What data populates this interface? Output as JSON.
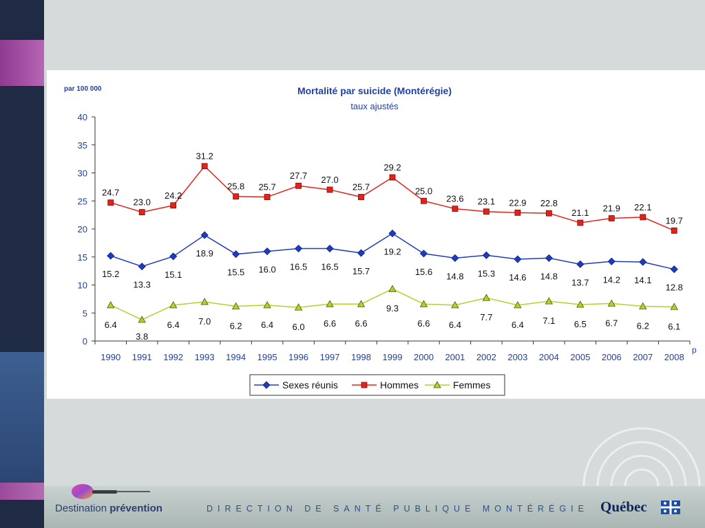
{
  "colors": {
    "accent_blue": "#1f3bbf",
    "accent_red": "#e2231a",
    "accent_green": "#b6cf2b",
    "title_blue": "#1f3fa4"
  },
  "footer": {
    "brand_normal": "Destination ",
    "brand_bold": "prévention",
    "org": "DIRECTION DE SANTÉ PUBLIQUE MONTÉRÉGIE",
    "quebec": "Québec"
  },
  "chart_data": {
    "type": "line",
    "title": "Mortalité par suicide (Montérégie)",
    "subtitle": "taux ajustés",
    "unit_label": "par 100 000",
    "categories": [
      "1990",
      "1991",
      "1992",
      "1993",
      "1994",
      "1995",
      "1996",
      "1997",
      "1998",
      "1999",
      "2000",
      "2001",
      "2002",
      "2003",
      "2004",
      "2005",
      "2006",
      "2007",
      "2008"
    ],
    "last_category_note": "p",
    "ylim": [
      0,
      40
    ],
    "yticks": [
      0,
      5,
      10,
      15,
      20,
      25,
      30,
      35,
      40
    ],
    "legend_position": "bottom",
    "grid": false,
    "series": [
      {
        "name": "Sexes réunis",
        "color": "#1f3bbf",
        "marker": "diamond",
        "values": [
          15.2,
          13.3,
          15.1,
          18.9,
          15.5,
          16.0,
          16.5,
          16.5,
          15.7,
          19.2,
          15.6,
          14.8,
          15.3,
          14.6,
          14.8,
          13.7,
          14.2,
          14.1,
          12.8
        ],
        "labels": [
          "15.2",
          "13.3",
          "15.1",
          "18.9",
          "15.5",
          "16.0",
          "16.5",
          "16.5",
          "15.7",
          "19.2",
          "15.6",
          "14.8",
          "15.3",
          "14.6",
          "14.8",
          "13.7",
          "14.2",
          "14.1",
          "12.8"
        ],
        "label_pos": "below"
      },
      {
        "name": "Hommes",
        "color": "#e2231a",
        "marker": "square",
        "values": [
          24.7,
          23.0,
          24.2,
          31.2,
          25.8,
          25.7,
          27.7,
          27.0,
          25.7,
          29.2,
          25.0,
          23.6,
          23.1,
          22.9,
          22.8,
          21.1,
          21.9,
          22.1,
          19.7
        ],
        "labels": [
          "24.7",
          "23.0",
          "24.2",
          "31.2",
          "25.8",
          "25.7",
          "27.7",
          "27.0",
          "25.7",
          "29.2",
          "25.0",
          "23.6",
          "23.1",
          "22.9",
          "22.8",
          "21.1",
          "21.9",
          "22.1",
          "19.7"
        ],
        "label_pos": "above"
      },
      {
        "name": "Femmes",
        "color": "#b6cf2b",
        "marker": "triangle",
        "values": [
          6.4,
          3.8,
          6.4,
          7.0,
          6.2,
          6.4,
          6.0,
          6.6,
          6.6,
          9.3,
          6.6,
          6.4,
          7.7,
          6.4,
          7.1,
          6.5,
          6.7,
          6.2,
          6.1
        ],
        "labels": [
          "6.4",
          "3.8",
          "6.4",
          "7.0",
          "6.2",
          "6.4",
          "6.0",
          "6.6",
          "6.6",
          "9.3",
          "6.6",
          "6.4",
          "7.7",
          "6.4",
          "7.1",
          "6.5",
          "6.7",
          "6.2",
          "6.1"
        ],
        "label_pos": "below"
      }
    ]
  }
}
